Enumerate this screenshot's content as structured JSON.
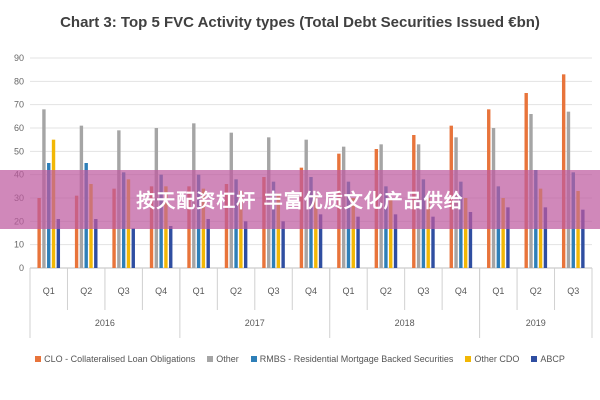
{
  "banner": {
    "text": "按天配资杠杆 丰富优质文化产品供给"
  },
  "chart_data": {
    "type": "bar",
    "title": "Chart 3: Top 5 FVC Activity types (Total Debt Securities Issued €bn)",
    "xlabel": "",
    "ylabel": "",
    "ylim": [
      0,
      90
    ],
    "yticks": [
      0,
      10,
      20,
      30,
      40,
      50,
      60,
      70,
      80,
      90
    ],
    "grid": true,
    "legend_position": "bottom",
    "categories": [
      "Q1",
      "Q2",
      "Q3",
      "Q4",
      "Q1",
      "Q2",
      "Q3",
      "Q4",
      "Q1",
      "Q2",
      "Q3",
      "Q4",
      "Q1",
      "Q2",
      "Q3"
    ],
    "year_groups": [
      {
        "label": "2016",
        "count": 4
      },
      {
        "label": "2017",
        "count": 4
      },
      {
        "label": "2018",
        "count": 4
      },
      {
        "label": "2019",
        "count": 3
      }
    ],
    "series": [
      {
        "name": "CLO - Collateralised Loan Obligations",
        "color": "#e8743b",
        "values": [
          30,
          31,
          34,
          35,
          35,
          36,
          39,
          43,
          49,
          51,
          57,
          61,
          68,
          75,
          83
        ]
      },
      {
        "name": "Other",
        "color": "#a5a5a5",
        "values": [
          68,
          61,
          59,
          60,
          62,
          58,
          56,
          55,
          52,
          53,
          53,
          56,
          60,
          66,
          67
        ]
      },
      {
        "name": "RMBS - Residential Mortgage Backed Securities",
        "color": "#2e7fb8",
        "values": [
          45,
          45,
          41,
          40,
          40,
          38,
          37,
          39,
          37,
          35,
          38,
          37,
          35,
          42,
          41
        ]
      },
      {
        "name": "Other CDO",
        "color": "#f2b705",
        "values": [
          55,
          36,
          38,
          35,
          34,
          33,
          32,
          31,
          30,
          30,
          30,
          30,
          30,
          34,
          33
        ]
      },
      {
        "name": "ABCP",
        "color": "#2f4ea1",
        "values": [
          21,
          21,
          17,
          18,
          21,
          20,
          20,
          23,
          22,
          23,
          22,
          24,
          26,
          26,
          25
        ]
      }
    ]
  }
}
